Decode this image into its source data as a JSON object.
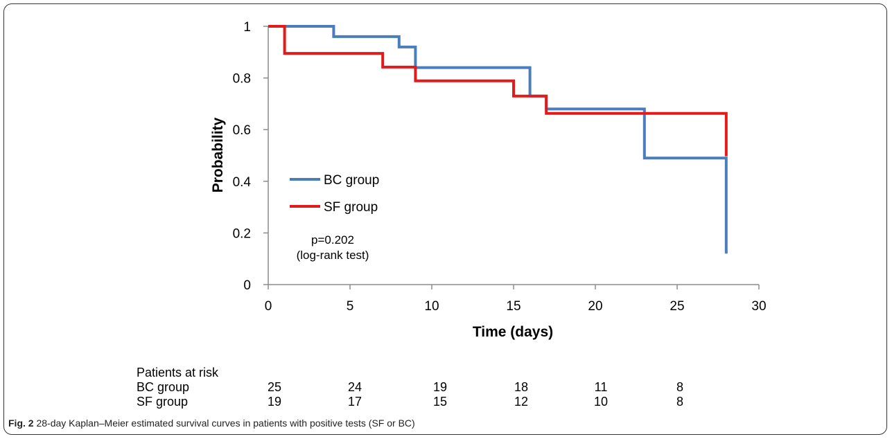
{
  "chart_data": {
    "type": "line",
    "subtype": "step",
    "xlabel": "Time (days)",
    "ylabel": "Probability",
    "xlim": [
      0,
      30
    ],
    "ylim": [
      0,
      1
    ],
    "xticks": [
      0,
      5,
      10,
      15,
      20,
      25,
      30
    ],
    "yticks": [
      0,
      0.2,
      0.4,
      0.6,
      0.8,
      1
    ],
    "ytick_labels": [
      "0",
      "0.2",
      "0.4",
      "0.6",
      "0.8",
      "1"
    ],
    "grid": false,
    "legend_position": "center-left",
    "series": [
      {
        "name": "BC group",
        "color": "#4a7ebb",
        "x": [
          0,
          4,
          8,
          9,
          16,
          17,
          23,
          28,
          28
        ],
        "y": [
          1,
          0.96,
          0.92,
          0.84,
          0.73,
          0.68,
          0.49,
          0.49,
          0.12
        ]
      },
      {
        "name": "SF group",
        "color": "#e31a1c",
        "x": [
          0,
          1,
          7,
          9,
          15,
          17,
          28,
          28
        ],
        "y": [
          1,
          0.895,
          0.842,
          0.789,
          0.73,
          0.663,
          0.663,
          0.497
        ]
      }
    ],
    "annotations": [
      "p=0.202",
      "(log-rank test)"
    ]
  },
  "risk_table": {
    "title": "Patients at risk",
    "rows": [
      {
        "label": "BC group",
        "values": [
          "25",
          "24",
          "19",
          "18",
          "11",
          "8"
        ]
      },
      {
        "label": "SF group",
        "values": [
          "19",
          "17",
          "15",
          "12",
          "10",
          "8"
        ]
      }
    ]
  },
  "caption": {
    "label": "Fig. 2",
    "text": "28-day Kaplan–Meier estimated survival curves in patients with positive tests (SF or BC)"
  }
}
